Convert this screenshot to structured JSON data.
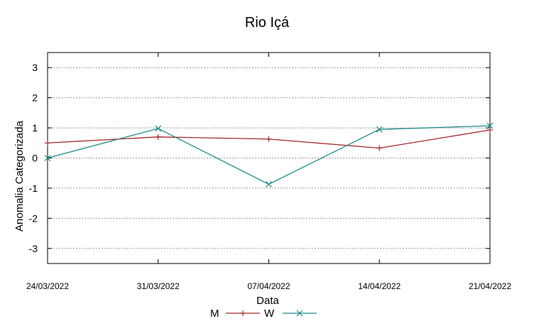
{
  "chart_data": {
    "type": "line",
    "title": "Rio Içá",
    "xlabel": "Data",
    "ylabel": "Anomalia Categorizada",
    "categories": [
      "24/03/2022",
      "31/03/2022",
      "07/04/2022",
      "14/04/2022",
      "21/04/2022"
    ],
    "ylim": [
      -3.5,
      3.5
    ],
    "yticks": [
      -3,
      -2,
      -1,
      0,
      1,
      2,
      3
    ],
    "ytick_labels": [
      "-3",
      "-2",
      "-1",
      "0",
      "1",
      "2",
      "3"
    ],
    "grid": true,
    "legend_position": "bottom-center",
    "series": [
      {
        "name": "M",
        "color": "#a52a2a",
        "marker": "plus",
        "values": [
          0.5,
          0.7,
          0.63,
          0.33,
          0.93
        ]
      },
      {
        "name": "W",
        "color": "#1e8a8a",
        "marker": "cross",
        "values": [
          0.0,
          0.98,
          -0.87,
          0.95,
          1.07
        ]
      }
    ]
  }
}
